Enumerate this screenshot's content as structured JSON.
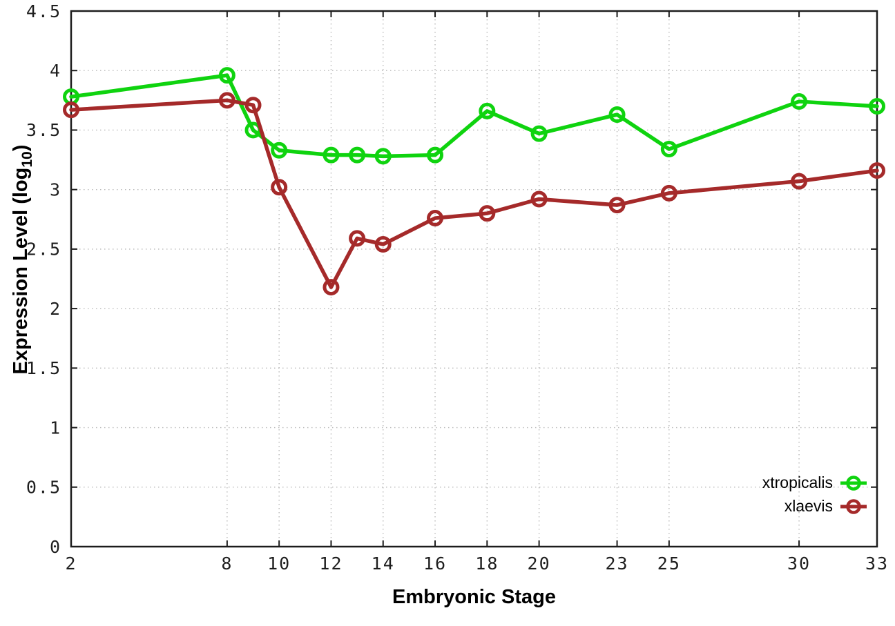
{
  "chart_data": {
    "type": "line",
    "title": "",
    "xlabel": "Embryonic Stage",
    "ylabel": "Expression Level (log10)",
    "ylabel_parts": {
      "main": "Expression Level (log",
      "sub": "10",
      "end": ")"
    },
    "x": [
      2,
      8,
      9,
      10,
      12,
      13,
      14,
      16,
      18,
      20,
      23,
      25,
      30,
      33
    ],
    "x_ticks": [
      2,
      8,
      10,
      12,
      14,
      16,
      18,
      20,
      23,
      25,
      30,
      33
    ],
    "y_ticks": [
      0,
      0.5,
      1,
      1.5,
      2,
      2.5,
      3,
      3.5,
      4,
      4.5
    ],
    "xlim": [
      2,
      33
    ],
    "ylim": [
      0,
      4.5
    ],
    "grid": true,
    "legend_position": "inside-bottom-right",
    "series": [
      {
        "name": "xtropicalis",
        "color": "#0fd30f",
        "values": [
          3.78,
          3.96,
          3.5,
          3.33,
          3.29,
          3.29,
          3.28,
          3.29,
          3.66,
          3.47,
          3.63,
          3.34,
          3.74,
          3.7
        ]
      },
      {
        "name": "xlaevis",
        "color": "#a52a2a",
        "values": [
          3.67,
          3.75,
          3.71,
          3.02,
          2.18,
          2.59,
          2.54,
          2.76,
          2.8,
          2.92,
          2.87,
          2.97,
          3.07,
          3.16
        ]
      }
    ]
  },
  "colors": {
    "background": "#ffffff",
    "border": "#1c1c1c",
    "grid": "#b9b9b9",
    "text": "#000000"
  }
}
